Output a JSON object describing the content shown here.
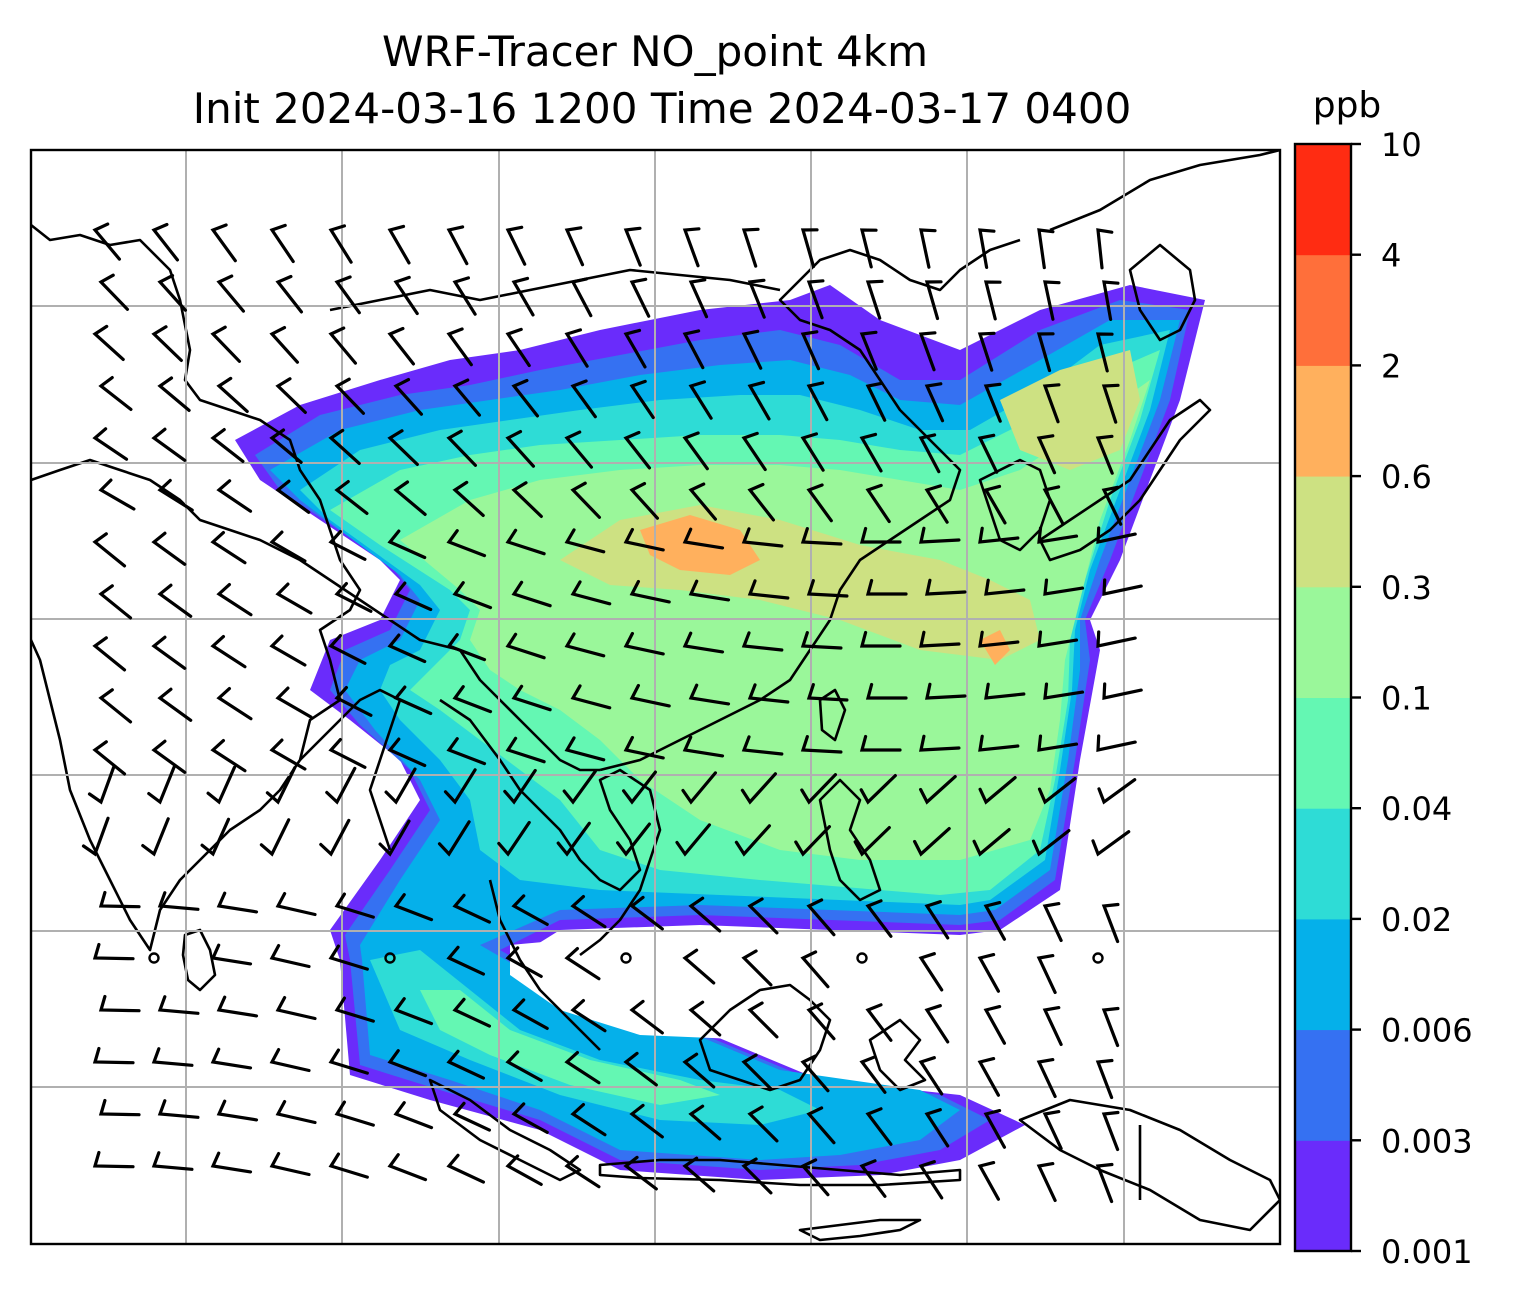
{
  "title": {
    "line1": "WRF-Tracer NO_point 4km",
    "line2": "Init 2024-03-16 1200 Time 2024-03-17 0400"
  },
  "colorbar": {
    "unit": "ppb",
    "levels": [
      "0.001",
      "0.003",
      "0.006",
      "0.02",
      "0.04",
      "0.1",
      "0.3",
      "0.6",
      "2",
      "4",
      "10"
    ],
    "colors": [
      "#6a2cfb",
      "#3571f2",
      "#05b0ea",
      "#2edcd6",
      "#64f7b3",
      "#9af79a",
      "#cde182",
      "#ffb05d",
      "#ff6f3a",
      "#ff2c12"
    ]
  },
  "map": {
    "gridlines": true,
    "grid_color": "#b0b0b0",
    "coastline_color": "#000000",
    "wind_barbs": true
  }
}
